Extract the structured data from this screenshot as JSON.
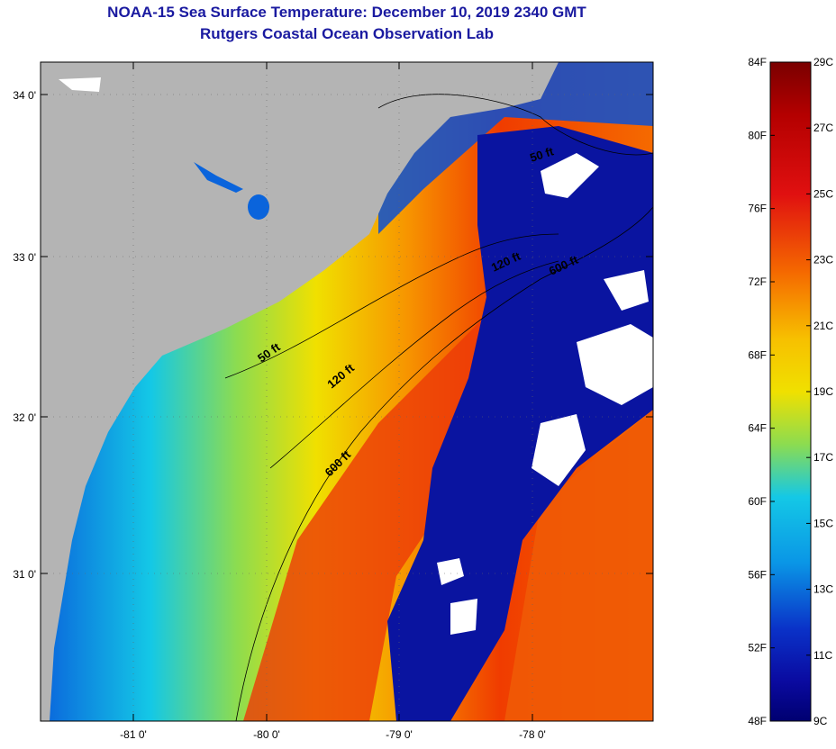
{
  "title": "NOAA-15 Sea Surface Temperature:  December 10, 2019 2340 GMT",
  "subtitle": "Rutgers Coastal Ocean Observation Lab",
  "map": {
    "lat_ticks": [
      "34 0'",
      "33 0'",
      "32 0'",
      "31 0'"
    ],
    "lon_ticks": [
      "-81 0'",
      "-80 0'",
      "-79 0'",
      "-78 0'"
    ],
    "contour_labels": [
      "50 ft",
      "120 ft",
      "600 ft",
      "50 ft",
      "120 ft",
      "600 ft"
    ]
  },
  "colorbar": {
    "f_labels": [
      "84F",
      "80F",
      "76F",
      "72F",
      "68F",
      "64F",
      "60F",
      "56F",
      "52F",
      "48F"
    ],
    "c_labels": [
      "29C",
      "27C",
      "25C",
      "23C",
      "21C",
      "19C",
      "17C",
      "15C",
      "13C",
      "11C",
      "9C"
    ],
    "colors": [
      "#7a0000",
      "#b40000",
      "#e01010",
      "#f03c00",
      "#f56a00",
      "#f79400",
      "#f7c000",
      "#f0e000",
      "#c8e61e",
      "#8cdc50",
      "#46d2a0",
      "#14c8e6",
      "#0a96e6",
      "#0a64dc",
      "#0a32c8",
      "#0a0aa0",
      "#000070"
    ]
  },
  "colors": {
    "land": "#b4b4b4",
    "title": "#1a1aa0",
    "deep_water": "#0a14a0",
    "cloud": "#ffffff"
  }
}
